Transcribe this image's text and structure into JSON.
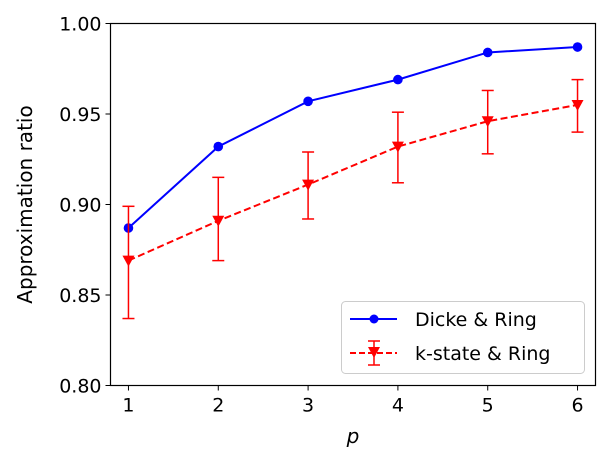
{
  "chart_data": {
    "type": "line",
    "title": "",
    "xlabel": "p",
    "ylabel": "Approximation ratio",
    "x": [
      1,
      2,
      3,
      4,
      5,
      6
    ],
    "xticks": [
      "1",
      "2",
      "3",
      "4",
      "5",
      "6"
    ],
    "yticks": [
      "0.80",
      "0.85",
      "0.90",
      "0.95",
      "1.00"
    ],
    "ylim": [
      0.8,
      1.0
    ],
    "xlim": [
      0.8,
      6.2
    ],
    "grid": false,
    "legend_position": "lower right",
    "series": [
      {
        "name": "Dicke & Ring",
        "color": "#0000ff",
        "linestyle": "solid",
        "marker": "circle",
        "values": [
          0.887,
          0.932,
          0.957,
          0.969,
          0.984,
          0.987
        ]
      },
      {
        "name": "k-state & Ring",
        "color": "#ff0000",
        "linestyle": "dashed",
        "marker": "triangle-down",
        "values": [
          0.869,
          0.891,
          0.911,
          0.932,
          0.946,
          0.955
        ],
        "error_low": [
          0.837,
          0.869,
          0.892,
          0.912,
          0.928,
          0.94
        ],
        "error_high": [
          0.899,
          0.915,
          0.929,
          0.951,
          0.963,
          0.969
        ]
      }
    ]
  }
}
